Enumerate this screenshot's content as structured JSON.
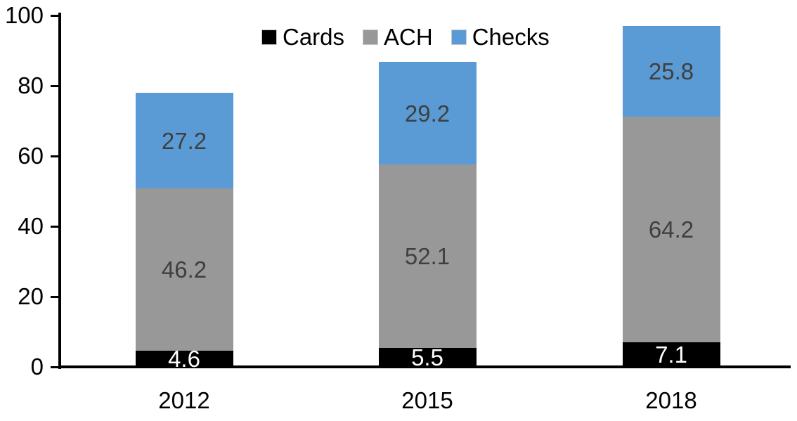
{
  "chart_data": {
    "type": "bar",
    "stacked": true,
    "title": "",
    "xlabel": "",
    "ylabel": "",
    "categories": [
      "2012",
      "2015",
      "2018"
    ],
    "series": [
      {
        "name": "Cards",
        "color": "#000000",
        "label_color": "#ffffff",
        "values": [
          4.6,
          5.5,
          7.1
        ]
      },
      {
        "name": "ACH",
        "color": "#989898",
        "label_color": "#3f3f3f",
        "values": [
          46.2,
          52.1,
          64.2
        ]
      },
      {
        "name": "Checks",
        "color": "#5b9bd5",
        "label_color": "#3f3f3f",
        "values": [
          27.2,
          29.2,
          25.8
        ]
      }
    ],
    "totals": [
      78.0,
      86.8,
      97.1
    ],
    "yticks": [
      0,
      20,
      40,
      60,
      80,
      100
    ],
    "ylim": [
      0,
      100
    ],
    "grid": false,
    "legend_position": "top-center",
    "axis_color": "#000000"
  }
}
